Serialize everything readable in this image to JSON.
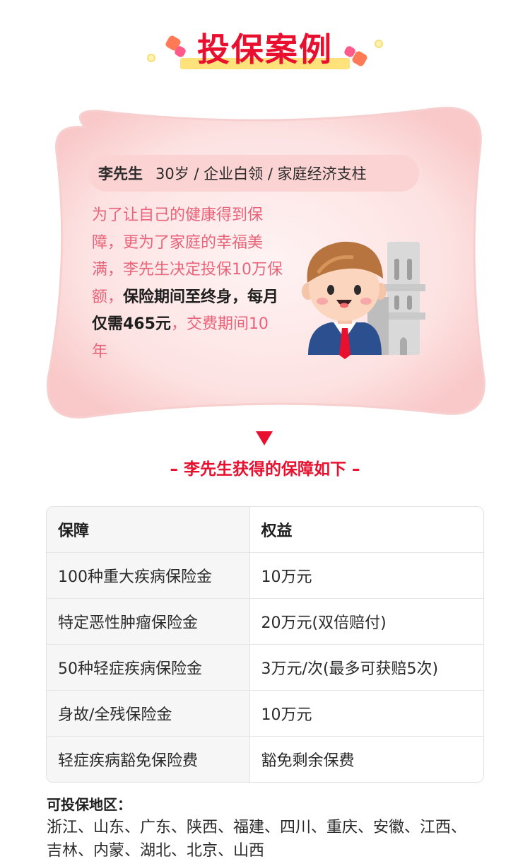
{
  "header": {
    "title": "投保案例"
  },
  "profile": {
    "name": "李先生",
    "details": "30岁 / 企业白领 / 家庭经济支柱"
  },
  "story": {
    "normal_1": "为了让自己的健康得到保障，更为了家庭的幸福美满，李先生决定投保10万保额，",
    "bold": "保险期间至终身，每月仅需465元",
    "normal_2": "，交费期间10年"
  },
  "subtitle": "– 李先生获得的保障如下 –",
  "table": {
    "headers": [
      "保障",
      "权益"
    ],
    "rows": [
      [
        "100种重大疾病保险金",
        "10万元"
      ],
      [
        "特定恶性肿瘤保险金",
        "20万元(双倍赔付)"
      ],
      [
        "50种轻症疾病保险金",
        "3万元/次(最多可获赔5次)"
      ],
      [
        "身故/全残保险金",
        "10万元"
      ],
      [
        "轻症疾病豁免保险费",
        "豁免剩余保费"
      ]
    ]
  },
  "regions": {
    "title": "可投保地区：",
    "text": "浙江、山东、广东、陕西、福建、四川、重庆、安徽、江西、吉林、内蒙、湖北、北京、山西"
  },
  "colors": {
    "accent": "#e8102e",
    "story_pink": "#e9647a",
    "card_bg": "#fde3e3",
    "highlight": "#ffe27a"
  },
  "icons": [
    "businessman-illustration",
    "building-illustration",
    "cube-decoration",
    "dot-decoration"
  ]
}
